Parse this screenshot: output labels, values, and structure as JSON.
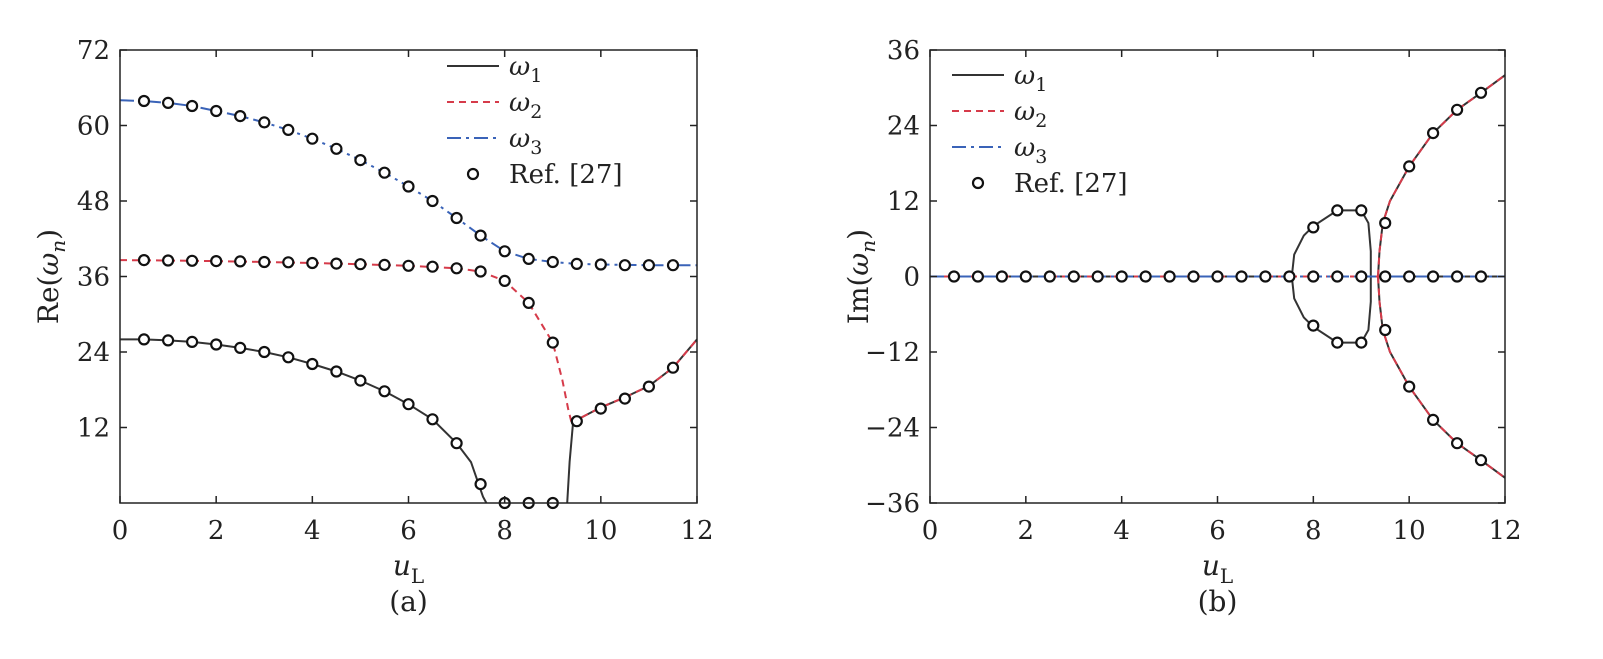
{
  "chart_data": [
    {
      "type": "line",
      "panel_label": "(a)",
      "xlabel": "u_L",
      "ylabel": "Re(ω_n)",
      "xlim": [
        0,
        12
      ],
      "ylim": [
        0,
        72
      ],
      "xticks": [
        0,
        2,
        4,
        6,
        8,
        10,
        12
      ],
      "yticks": [
        12,
        24,
        36,
        48,
        60,
        72
      ],
      "grid": false,
      "legend_position": "top-right",
      "series": [
        {
          "name": "ω1",
          "style": "solid",
          "color": "#333333",
          "segments": [
            [
              [
                0,
                26.0
              ],
              [
                0.5,
                26.0
              ],
              [
                1,
                25.85
              ],
              [
                1.5,
                25.6
              ],
              [
                2,
                25.2
              ],
              [
                2.5,
                24.65
              ],
              [
                3,
                24.0
              ],
              [
                3.5,
                23.15
              ],
              [
                4,
                22.1
              ],
              [
                4.5,
                20.9
              ],
              [
                5,
                19.45
              ],
              [
                5.5,
                17.75
              ],
              [
                6,
                15.7
              ],
              [
                6.5,
                13.3
              ],
              [
                7,
                9.5
              ],
              [
                7.3,
                6.5
              ],
              [
                7.55,
                1.0
              ],
              [
                7.62,
                0
              ]
            ],
            [
              [
                9.3,
                0
              ],
              [
                9.35,
                6.5
              ],
              [
                9.42,
                12.5
              ],
              [
                9.5,
                13.2
              ],
              [
                10,
                15.2
              ],
              [
                10.5,
                16.8
              ],
              [
                11,
                18.6
              ],
              [
                11.5,
                21.5
              ],
              [
                12,
                26.0
              ]
            ]
          ]
        },
        {
          "name": "ω2",
          "style": "dashed",
          "color": "#d63b4a",
          "segments": [
            [
              [
                0,
                38.6
              ],
              [
                1,
                38.55
              ],
              [
                2,
                38.45
              ],
              [
                3,
                38.3
              ],
              [
                4,
                38.15
              ],
              [
                5,
                37.95
              ],
              [
                6,
                37.7
              ],
              [
                7,
                37.3
              ],
              [
                7.5,
                36.8
              ],
              [
                8,
                35.3
              ],
              [
                8.5,
                31.8
              ],
              [
                9,
                25.5
              ],
              [
                9.2,
                19.5
              ],
              [
                9.32,
                15.0
              ],
              [
                9.4,
                12.5
              ]
            ],
            [
              [
                9.4,
                12.5
              ],
              [
                9.5,
                13.2
              ],
              [
                10,
                15.2
              ],
              [
                10.5,
                16.8
              ],
              [
                11,
                18.6
              ],
              [
                11.5,
                21.5
              ],
              [
                12,
                26.0
              ]
            ]
          ]
        },
        {
          "name": "ω3",
          "style": "dashdot",
          "color": "#3a63b8",
          "segments": [
            [
              [
                0,
                64.0
              ],
              [
                0.5,
                63.9
              ],
              [
                1,
                63.6
              ],
              [
                1.5,
                63.1
              ],
              [
                2,
                62.3
              ],
              [
                2.5,
                61.5
              ],
              [
                3,
                60.5
              ],
              [
                3.5,
                59.3
              ],
              [
                4,
                57.9
              ],
              [
                4.5,
                56.3
              ],
              [
                5,
                54.5
              ],
              [
                5.5,
                52.5
              ],
              [
                6,
                50.3
              ],
              [
                6.5,
                48.0
              ],
              [
                7,
                45.3
              ],
              [
                7.5,
                42.5
              ],
              [
                8,
                40.0
              ],
              [
                8.5,
                38.8
              ],
              [
                9,
                38.3
              ],
              [
                9.5,
                38.0
              ],
              [
                10,
                37.9
              ],
              [
                11,
                37.8
              ],
              [
                12,
                37.8
              ]
            ]
          ]
        }
      ],
      "reference_points": {
        "name": "Ref. [27]",
        "points": [
          [
            0.5,
            26.0
          ],
          [
            1,
            25.85
          ],
          [
            1.5,
            25.6
          ],
          [
            2,
            25.2
          ],
          [
            2.5,
            24.65
          ],
          [
            3,
            24.0
          ],
          [
            3.5,
            23.15
          ],
          [
            4,
            22.1
          ],
          [
            4.5,
            20.9
          ],
          [
            5,
            19.45
          ],
          [
            5.5,
            17.75
          ],
          [
            6,
            15.7
          ],
          [
            6.5,
            13.3
          ],
          [
            7,
            9.5
          ],
          [
            7.5,
            3.0
          ],
          [
            8,
            0
          ],
          [
            8.5,
            0
          ],
          [
            9,
            0
          ],
          [
            9.5,
            13.0
          ],
          [
            10,
            15.0
          ],
          [
            10.5,
            16.6
          ],
          [
            11,
            18.5
          ],
          [
            11.5,
            21.5
          ],
          [
            0.5,
            38.6
          ],
          [
            1,
            38.55
          ],
          [
            1.5,
            38.5
          ],
          [
            2,
            38.45
          ],
          [
            2.5,
            38.4
          ],
          [
            3,
            38.3
          ],
          [
            3.5,
            38.25
          ],
          [
            4,
            38.15
          ],
          [
            4.5,
            38.05
          ],
          [
            5,
            37.95
          ],
          [
            5.5,
            37.85
          ],
          [
            6,
            37.7
          ],
          [
            6.5,
            37.55
          ],
          [
            7,
            37.3
          ],
          [
            7.5,
            36.8
          ],
          [
            8,
            35.3
          ],
          [
            8.5,
            31.8
          ],
          [
            9,
            25.5
          ],
          [
            0.5,
            63.9
          ],
          [
            1,
            63.6
          ],
          [
            1.5,
            63.1
          ],
          [
            2,
            62.3
          ],
          [
            2.5,
            61.5
          ],
          [
            3,
            60.5
          ],
          [
            3.5,
            59.3
          ],
          [
            4,
            57.9
          ],
          [
            4.5,
            56.3
          ],
          [
            5,
            54.5
          ],
          [
            5.5,
            52.5
          ],
          [
            6,
            50.3
          ],
          [
            6.5,
            48.0
          ],
          [
            7,
            45.3
          ],
          [
            7.5,
            42.5
          ],
          [
            8,
            40.0
          ],
          [
            8.5,
            38.8
          ],
          [
            9,
            38.3
          ],
          [
            9.5,
            38.0
          ],
          [
            10,
            37.9
          ],
          [
            10.5,
            37.8
          ],
          [
            11,
            37.8
          ],
          [
            11.5,
            37.8
          ]
        ]
      }
    },
    {
      "type": "line",
      "panel_label": "(b)",
      "xlabel": "u_L",
      "ylabel": "Im(ω_n)",
      "xlim": [
        0,
        12
      ],
      "ylim": [
        -36,
        36
      ],
      "xticks": [
        0,
        2,
        4,
        6,
        8,
        10,
        12
      ],
      "yticks": [
        -36,
        -24,
        -12,
        0,
        12,
        24,
        36
      ],
      "grid": false,
      "legend_position": "top-left",
      "series": [
        {
          "name": "ω1",
          "style": "solid",
          "color": "#333333",
          "segments": [
            [
              [
                0,
                0
              ],
              [
                7.55,
                0
              ],
              [
                7.6,
                3.5
              ],
              [
                7.8,
                6.5
              ],
              [
                8,
                8.0
              ],
              [
                8.5,
                10.5
              ],
              [
                9,
                10.5
              ],
              [
                9.15,
                8.5
              ],
              [
                9.2,
                4.0
              ],
              [
                9.2,
                0
              ]
            ],
            [
              [
                7.55,
                0
              ],
              [
                7.6,
                -3.5
              ],
              [
                7.8,
                -6.5
              ],
              [
                8,
                -8.0
              ],
              [
                8.5,
                -10.5
              ],
              [
                9,
                -10.5
              ],
              [
                9.15,
                -8.5
              ],
              [
                9.2,
                -4.0
              ],
              [
                9.2,
                0
              ]
            ],
            [
              [
                9.2,
                0
              ],
              [
                12,
                0
              ]
            ],
            [
              [
                9.35,
                0
              ],
              [
                9.38,
                4.0
              ],
              [
                9.45,
                8.5
              ],
              [
                9.6,
                12.0
              ],
              [
                10,
                17.5
              ],
              [
                10.5,
                22.8
              ],
              [
                11,
                26.5
              ],
              [
                11.5,
                29.2
              ],
              [
                12,
                32.0
              ]
            ],
            [
              [
                9.35,
                0
              ],
              [
                9.38,
                -4.0
              ],
              [
                9.45,
                -8.5
              ],
              [
                9.6,
                -12.0
              ],
              [
                10,
                -17.5
              ],
              [
                10.5,
                -22.8
              ],
              [
                11,
                -26.5
              ],
              [
                11.5,
                -29.2
              ],
              [
                12,
                -32.0
              ]
            ]
          ]
        },
        {
          "name": "ω2",
          "style": "dashed",
          "color": "#d63b4a",
          "segments": [
            [
              [
                0,
                0
              ],
              [
                9.35,
                0
              ]
            ],
            [
              [
                9.35,
                0
              ],
              [
                9.38,
                4.0
              ],
              [
                9.45,
                8.5
              ],
              [
                9.6,
                12.0
              ],
              [
                10,
                17.5
              ],
              [
                10.5,
                22.8
              ],
              [
                11,
                26.5
              ],
              [
                11.5,
                29.2
              ],
              [
                12,
                32.0
              ]
            ],
            [
              [
                9.35,
                0
              ],
              [
                9.38,
                -4.0
              ],
              [
                9.45,
                -8.5
              ],
              [
                9.6,
                -12.0
              ],
              [
                10,
                -17.5
              ],
              [
                10.5,
                -22.8
              ],
              [
                11,
                -26.5
              ],
              [
                11.5,
                -29.2
              ],
              [
                12,
                -32.0
              ]
            ]
          ]
        },
        {
          "name": "ω3",
          "style": "dashdot",
          "color": "#3a63b8",
          "segments": [
            [
              [
                0,
                0
              ],
              [
                12,
                0
              ]
            ]
          ]
        }
      ],
      "reference_points": {
        "name": "Ref. [27]",
        "points": [
          [
            0.5,
            0
          ],
          [
            1,
            0
          ],
          [
            1.5,
            0
          ],
          [
            2,
            0
          ],
          [
            2.5,
            0
          ],
          [
            3,
            0
          ],
          [
            3.5,
            0
          ],
          [
            4,
            0
          ],
          [
            4.5,
            0
          ],
          [
            5,
            0
          ],
          [
            5.5,
            0
          ],
          [
            6,
            0
          ],
          [
            6.5,
            0
          ],
          [
            7,
            0
          ],
          [
            7.5,
            0
          ],
          [
            8,
            0
          ],
          [
            8.5,
            0
          ],
          [
            9,
            0
          ],
          [
            9.5,
            0
          ],
          [
            10,
            0
          ],
          [
            10.5,
            0
          ],
          [
            11,
            0
          ],
          [
            11.5,
            0
          ],
          [
            8,
            7.8
          ],
          [
            8.5,
            10.5
          ],
          [
            9,
            10.5
          ],
          [
            8,
            -7.8
          ],
          [
            8.5,
            -10.5
          ],
          [
            9,
            -10.5
          ],
          [
            9.5,
            8.5
          ],
          [
            10,
            17.5
          ],
          [
            10.5,
            22.8
          ],
          [
            11,
            26.5
          ],
          [
            11.5,
            29.2
          ],
          [
            9.5,
            -8.5
          ],
          [
            10,
            -17.5
          ],
          [
            10.5,
            -22.8
          ],
          [
            11,
            -26.5
          ],
          [
            11.5,
            -29.2
          ]
        ]
      }
    }
  ]
}
